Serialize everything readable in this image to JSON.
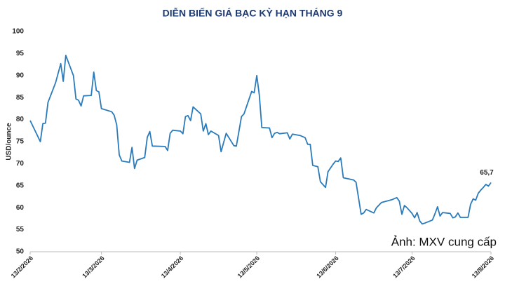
{
  "chart_data": {
    "type": "line",
    "title": "DIỄN BIẾN GIÁ BẠC KỲ HẠN THÁNG 9",
    "y_label": "USD/ounce",
    "credit": "Ảnh: MXV cung cấp",
    "color": "#2b7bba",
    "grid": false,
    "ylim": [
      50,
      100
    ],
    "yticks": [
      50,
      55,
      60,
      65,
      70,
      75,
      80,
      85,
      90,
      95,
      100
    ],
    "xlim": [
      "2026-02-13",
      "2026-08-13"
    ],
    "xticks": [
      {
        "value": "2026-02-13",
        "label": "13/2/2026"
      },
      {
        "value": "2026-03-13",
        "label": "13/3/2026"
      },
      {
        "value": "2026-04-13",
        "label": "13/4/2026"
      },
      {
        "value": "2026-05-13",
        "label": "13/5/2026"
      },
      {
        "value": "2026-06-13",
        "label": "13/6/2026"
      },
      {
        "value": "2026-07-13",
        "label": "13/7/2026"
      },
      {
        "value": "2026-08-13",
        "label": "13/8/2026"
      }
    ],
    "x": [
      "2026-02-13",
      "2026-02-17",
      "2026-02-18",
      "2026-02-19",
      "2026-02-20",
      "2026-02-23",
      "2026-02-25",
      "2026-02-26",
      "2026-02-27",
      "2026-03-02",
      "2026-03-03",
      "2026-03-04",
      "2026-03-05",
      "2026-03-06",
      "2026-03-09",
      "2026-03-10",
      "2026-03-11",
      "2026-03-12",
      "2026-03-13",
      "2026-03-17",
      "2026-03-18",
      "2026-03-19",
      "2026-03-20",
      "2026-03-21",
      "2026-03-24",
      "2026-03-25",
      "2026-03-26",
      "2026-03-27",
      "2026-03-30",
      "2026-03-31",
      "2026-04-01",
      "2026-04-02",
      "2026-04-07",
      "2026-04-08",
      "2026-04-09",
      "2026-04-10",
      "2026-04-13",
      "2026-04-14",
      "2026-04-15",
      "2026-04-16",
      "2026-04-17",
      "2026-04-18",
      "2026-04-21",
      "2026-04-22",
      "2026-04-23",
      "2026-04-24",
      "2026-04-25",
      "2026-04-28",
      "2026-04-29",
      "2026-05-01",
      "2026-05-04",
      "2026-05-05",
      "2026-05-07",
      "2026-05-08",
      "2026-05-11",
      "2026-05-12",
      "2026-05-13",
      "2026-05-14",
      "2026-05-15",
      "2026-05-18",
      "2026-05-19",
      "2026-05-20",
      "2026-05-21",
      "2026-05-22",
      "2026-05-25",
      "2026-05-26",
      "2026-05-27",
      "2026-05-30",
      "2026-06-01",
      "2026-06-02",
      "2026-06-03",
      "2026-06-04",
      "2026-06-06",
      "2026-06-07",
      "2026-06-09",
      "2026-06-10",
      "2026-06-12",
      "2026-06-13",
      "2026-06-14",
      "2026-06-15",
      "2026-06-16",
      "2026-06-20",
      "2026-06-21",
      "2026-06-23",
      "2026-06-24",
      "2026-06-25",
      "2026-06-28",
      "2026-06-29",
      "2026-07-01",
      "2026-07-05",
      "2026-07-07",
      "2026-07-08",
      "2026-07-09",
      "2026-07-10",
      "2026-07-11",
      "2026-07-13",
      "2026-07-14",
      "2026-07-15",
      "2026-07-16",
      "2026-07-17",
      "2026-07-18",
      "2026-07-21",
      "2026-07-22",
      "2026-07-23",
      "2026-07-24",
      "2026-07-25",
      "2026-07-28",
      "2026-07-29",
      "2026-07-30",
      "2026-07-31",
      "2026-08-01",
      "2026-08-04",
      "2026-08-05",
      "2026-08-06",
      "2026-08-07",
      "2026-08-08",
      "2026-08-09",
      "2026-08-10",
      "2026-08-11",
      "2026-08-12",
      "2026-08-13"
    ],
    "values": [
      79.8,
      75.0,
      79.1,
      79.2,
      83.9,
      88.4,
      92.7,
      88.7,
      94.6,
      90.0,
      84.7,
      84.4,
      83.1,
      85.4,
      85.5,
      90.8,
      86.6,
      86.3,
      82.5,
      81.8,
      81.0,
      78.8,
      72.0,
      70.6,
      70.3,
      73.7,
      68.9,
      70.8,
      71.4,
      76.0,
      77.3,
      74.0,
      73.9,
      73.0,
      76.9,
      77.6,
      77.4,
      76.8,
      80.7,
      80.9,
      79.8,
      82.9,
      81.3,
      77.4,
      79.1,
      76.6,
      77.4,
      76.4,
      72.7,
      76.9,
      74.1,
      74.0,
      80.7,
      81.3,
      86.4,
      86.1,
      90.0,
      85.6,
      78.2,
      78.1,
      75.9,
      76.9,
      77.1,
      76.8,
      77.0,
      75.6,
      76.7,
      76.4,
      75.9,
      74.4,
      74.4,
      69.6,
      69.3,
      65.9,
      64.6,
      68.2,
      69.9,
      70.6,
      70.5,
      71.3,
      66.8,
      66.3,
      65.8,
      58.5,
      58.8,
      59.6,
      58.8,
      60.0,
      61.2,
      61.8,
      62.3,
      61.5,
      58.5,
      60.5,
      60.0,
      58.7,
      57.7,
      58.9,
      57.0,
      56.3,
      56.5,
      57.2,
      58.6,
      60.2,
      58.1,
      58.9,
      58.7,
      57.7,
      57.9,
      58.8,
      57.8,
      57.8,
      60.8,
      62.0,
      61.7,
      63.3,
      64.0,
      64.6,
      65.3,
      64.9,
      65.7
    ],
    "value_labels": [
      null,
      null,
      null,
      null,
      null,
      null,
      null,
      null,
      null,
      null,
      null,
      null,
      null,
      null,
      null,
      null,
      null,
      null,
      null,
      null,
      null,
      null,
      null,
      null,
      null,
      null,
      null,
      null,
      null,
      null,
      null,
      null,
      null,
      null,
      null,
      null,
      null,
      null,
      null,
      null,
      null,
      null,
      null,
      null,
      null,
      null,
      null,
      null,
      null,
      null,
      null,
      null,
      null,
      null,
      null,
      null,
      null,
      null,
      null,
      null,
      null,
      null,
      null,
      null,
      null,
      null,
      null,
      null,
      null,
      null,
      null,
      null,
      null,
      null,
      null,
      null,
      null,
      null,
      null,
      null,
      null,
      null,
      null,
      null,
      null,
      null,
      null,
      null,
      null,
      null,
      null,
      null,
      null,
      null,
      null,
      null,
      null,
      null,
      null,
      null,
      null,
      null,
      null,
      null,
      null,
      null,
      null,
      null,
      null,
      null,
      null,
      null,
      null,
      null,
      null,
      null,
      null,
      null,
      null,
      null,
      "65,7"
    ]
  }
}
